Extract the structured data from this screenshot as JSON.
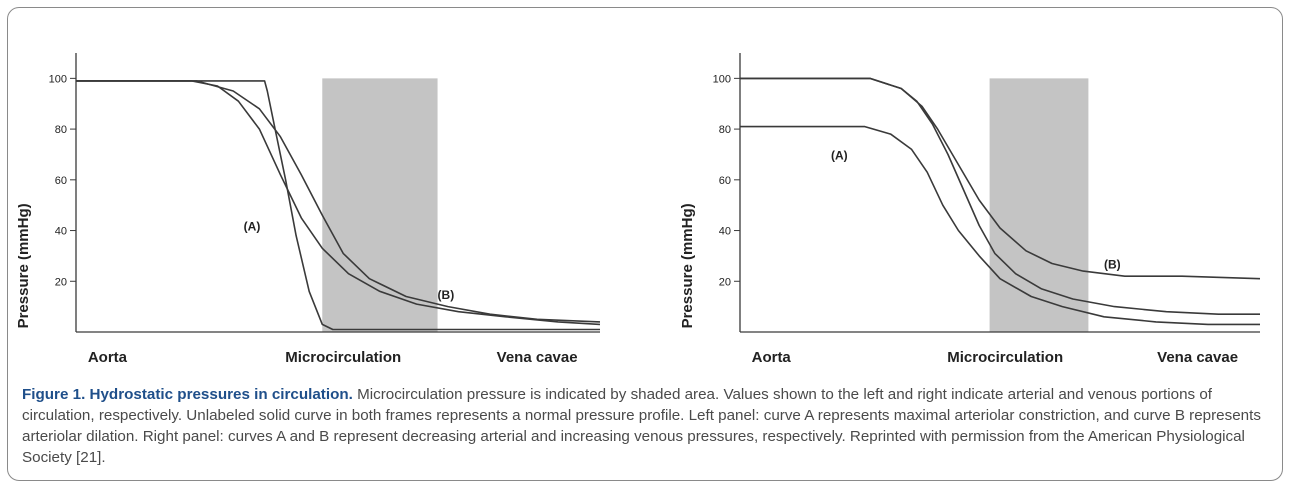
{
  "caption": {
    "title": "Figure 1. Hydrostatic pressures in circulation.",
    "text": " Microcirculation pressure is indicated by shaded area. Values shown to the left and right indicate arterial and venous portions of circulation, respectively. Unlabeled solid curve in both frames represents a normal pressure profile. Left panel: curve A represents maximal arteriolar constriction, and curve B represents arteriolar dilation. Right panel: curves A and B represent decreasing arterial and increasing venous pressures, respectively. Reprinted with permission from the American Physiological Society [21]."
  },
  "colors": {
    "shade": "#c4c4c4",
    "line": "#3a3a3a",
    "caption_title": "#1f4f8a",
    "caption_text": "#4a4a4a"
  },
  "chart_data": [
    {
      "type": "line",
      "panel": "left",
      "ylabel": "Pressure (mmHg)",
      "yticks": [
        20,
        40,
        60,
        80,
        100
      ],
      "ylim": [
        0,
        110
      ],
      "xlim": [
        0,
        10
      ],
      "x_category_labels": [
        {
          "label": "Aorta",
          "x": 0.6
        },
        {
          "label": "Microcirculation",
          "x": 5.1
        },
        {
          "label": "Vena cavae",
          "x": 8.8
        }
      ],
      "shaded_region": {
        "x0": 4.7,
        "x1": 6.9,
        "ytop": 100
      },
      "series": [
        {
          "id": "normal",
          "points": [
            [
              0,
              99
            ],
            [
              2.2,
              99
            ],
            [
              2.7,
              97
            ],
            [
              3.1,
              91
            ],
            [
              3.5,
              80
            ],
            [
              3.9,
              62
            ],
            [
              4.3,
              45
            ],
            [
              4.7,
              33
            ],
            [
              5.2,
              23
            ],
            [
              5.8,
              16
            ],
            [
              6.5,
              11
            ],
            [
              7.3,
              8
            ],
            [
              8.2,
              6
            ],
            [
              9.2,
              4
            ],
            [
              10,
              3
            ]
          ]
        },
        {
          "id": "A",
          "label": "(A)",
          "label_pos": [
            3.2,
            40
          ],
          "points": [
            [
              0,
              99
            ],
            [
              3.6,
              99
            ],
            [
              3.65,
              95
            ],
            [
              3.8,
              80
            ],
            [
              4.0,
              60
            ],
            [
              4.2,
              38
            ],
            [
              4.45,
              16
            ],
            [
              4.7,
              3
            ],
            [
              4.9,
              1
            ],
            [
              10,
              1
            ]
          ]
        },
        {
          "id": "B",
          "label": "(B)",
          "label_pos": [
            6.9,
            13
          ],
          "points": [
            [
              0,
              99
            ],
            [
              2.3,
              99
            ],
            [
              3.0,
              95
            ],
            [
              3.5,
              88
            ],
            [
              3.9,
              77
            ],
            [
              4.3,
              62
            ],
            [
              4.7,
              46
            ],
            [
              5.1,
              31
            ],
            [
              5.6,
              21
            ],
            [
              6.3,
              14
            ],
            [
              7.1,
              10
            ],
            [
              7.9,
              7
            ],
            [
              8.8,
              5
            ],
            [
              10,
              4
            ]
          ]
        }
      ]
    },
    {
      "type": "line",
      "panel": "right",
      "ylabel": "Pressure (mmHg)",
      "yticks": [
        20,
        40,
        60,
        80,
        100
      ],
      "ylim": [
        0,
        110
      ],
      "xlim": [
        0,
        10
      ],
      "x_category_labels": [
        {
          "label": "Aorta",
          "x": 0.6
        },
        {
          "label": "Microcirculation",
          "x": 5.1
        },
        {
          "label": "Vena cavae",
          "x": 8.8
        }
      ],
      "shaded_region": {
        "x0": 4.8,
        "x1": 6.7,
        "ytop": 100
      },
      "series": [
        {
          "id": "normal",
          "points": [
            [
              0,
              100
            ],
            [
              2.5,
              100
            ],
            [
              3.1,
              96
            ],
            [
              3.4,
              91
            ],
            [
              3.7,
              82
            ],
            [
              4.0,
              70
            ],
            [
              4.3,
              56
            ],
            [
              4.6,
              42
            ],
            [
              4.9,
              31
            ],
            [
              5.3,
              23
            ],
            [
              5.8,
              17
            ],
            [
              6.4,
              13
            ],
            [
              7.2,
              10
            ],
            [
              8.2,
              8
            ],
            [
              9.2,
              7
            ],
            [
              10,
              7
            ]
          ]
        },
        {
          "id": "A",
          "label": "(A)",
          "label_pos": [
            1.75,
            68
          ],
          "points": [
            [
              0,
              81
            ],
            [
              2.4,
              81
            ],
            [
              2.9,
              78
            ],
            [
              3.3,
              72
            ],
            [
              3.6,
              63
            ],
            [
              3.9,
              50
            ],
            [
              4.2,
              40
            ],
            [
              4.6,
              30
            ],
            [
              5.0,
              21
            ],
            [
              5.6,
              14
            ],
            [
              6.2,
              10
            ],
            [
              7.0,
              6
            ],
            [
              8.0,
              4
            ],
            [
              9.0,
              3
            ],
            [
              10,
              3
            ]
          ]
        },
        {
          "id": "B",
          "label": "(B)",
          "label_pos": [
            7.0,
            25
          ],
          "points": [
            [
              0,
              100
            ],
            [
              2.5,
              100
            ],
            [
              3.1,
              96
            ],
            [
              3.5,
              89
            ],
            [
              3.8,
              80
            ],
            [
              4.2,
              66
            ],
            [
              4.6,
              52
            ],
            [
              5.0,
              41
            ],
            [
              5.5,
              32
            ],
            [
              6.0,
              27
            ],
            [
              6.6,
              24
            ],
            [
              7.4,
              22
            ],
            [
              8.5,
              22
            ],
            [
              10,
              21
            ]
          ]
        }
      ]
    }
  ]
}
